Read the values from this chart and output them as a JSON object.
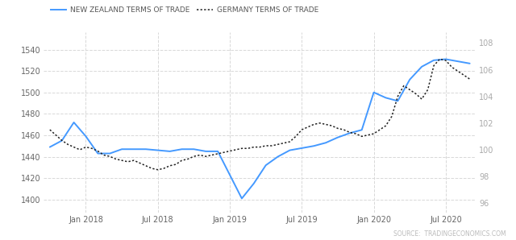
{
  "bg_color": "#ffffff",
  "grid_color": "#d8d8d8",
  "left_ylim": [
    1388,
    1556
  ],
  "right_ylim": [
    95.3,
    108.8
  ],
  "left_yticks": [
    1400,
    1420,
    1440,
    1460,
    1480,
    1500,
    1520,
    1540
  ],
  "right_yticks": [
    96,
    98,
    100,
    102,
    104,
    106,
    108
  ],
  "xtick_labels": [
    "Jan 2018",
    "Jul 2018",
    "Jan 2019",
    "Jul 2019",
    "Jan 2020",
    "Jul 2020"
  ],
  "xtick_positions": [
    3,
    9,
    15,
    21,
    27,
    33
  ],
  "nz_color": "#4499ff",
  "de_color": "#222222",
  "legend_nz": "NEW ZEALAND TERMS OF TRADE",
  "legend_de": "GERMANY TERMS OF TRADE",
  "source_text": "SOURCE:  TRADINGECONOMICS.COM",
  "nz_x": [
    0,
    1,
    2,
    3,
    4,
    5,
    6,
    7,
    8,
    9,
    10,
    11,
    12,
    13,
    14,
    15,
    16,
    17,
    18,
    19,
    20,
    21,
    22,
    23,
    24,
    25,
    26,
    27,
    28,
    29,
    30,
    31,
    32,
    33,
    34,
    35
  ],
  "nz_y": [
    1449,
    1455,
    1472,
    1459,
    1443,
    1443,
    1447,
    1447,
    1447,
    1446,
    1445,
    1447,
    1447,
    1445,
    1445,
    1423,
    1401,
    1415,
    1432,
    1440,
    1446,
    1448,
    1450,
    1453,
    1458,
    1462,
    1465,
    1500,
    1495,
    1492,
    1512,
    1524,
    1530,
    1531,
    1529,
    1527
  ],
  "de_x": [
    0,
    0.5,
    1,
    1.5,
    2,
    2.5,
    3,
    3.5,
    4,
    4.5,
    5,
    5.5,
    6,
    6.5,
    7,
    7.5,
    8,
    8.5,
    9,
    9.5,
    10,
    10.5,
    11,
    11.5,
    12,
    12.5,
    13,
    13.5,
    14,
    14.5,
    15,
    15.5,
    16,
    16.5,
    17,
    17.5,
    18,
    18.5,
    19,
    19.5,
    20,
    20.5,
    21,
    21.5,
    22,
    22.5,
    23,
    23.5,
    24,
    24.5,
    25,
    25.5,
    26,
    26.5,
    27,
    27.5,
    28,
    28.5,
    29,
    29.5,
    30,
    30.5,
    31,
    31.5,
    32,
    32.5,
    33,
    33.5,
    34,
    34.5,
    35
  ],
  "de_y": [
    101.5,
    101.1,
    100.7,
    100.4,
    100.2,
    100.0,
    100.2,
    100.1,
    99.9,
    99.6,
    99.5,
    99.3,
    99.2,
    99.1,
    99.2,
    99.0,
    98.8,
    98.6,
    98.5,
    98.6,
    98.8,
    98.9,
    99.2,
    99.3,
    99.5,
    99.6,
    99.5,
    99.6,
    99.7,
    99.8,
    99.9,
    100.0,
    100.1,
    100.1,
    100.2,
    100.2,
    100.3,
    100.3,
    100.4,
    100.5,
    100.6,
    101.0,
    101.5,
    101.7,
    101.9,
    102.0,
    101.9,
    101.8,
    101.6,
    101.5,
    101.3,
    101.2,
    101.0,
    101.1,
    101.2,
    101.5,
    101.8,
    102.5,
    104.0,
    104.8,
    104.5,
    104.2,
    103.8,
    104.5,
    106.3,
    106.8,
    106.7,
    106.2,
    105.9,
    105.6,
    105.3
  ]
}
